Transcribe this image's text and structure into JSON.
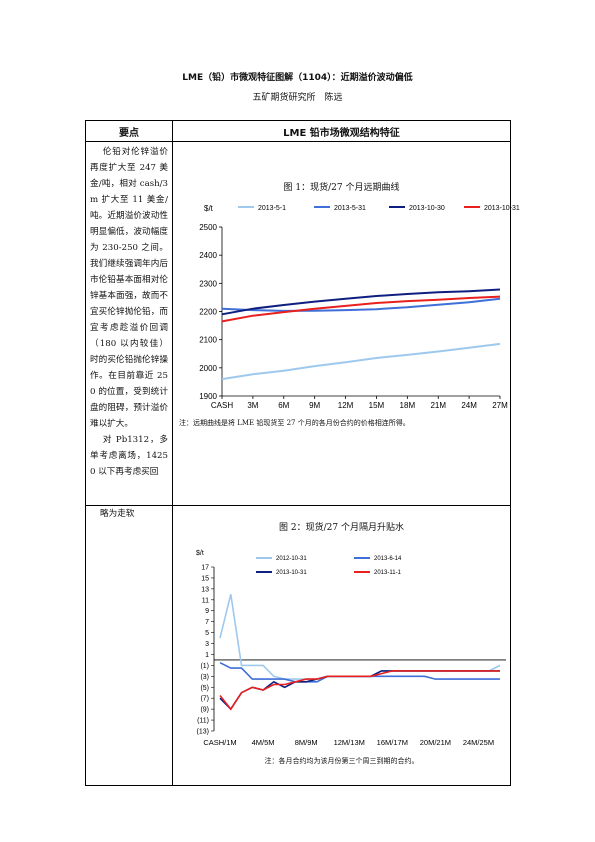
{
  "doc": {
    "title": "LME（铅）市微观特征图解（1104）：近期溢价波动偏低",
    "subtitle": "五矿期货研究所　陈远"
  },
  "table": {
    "col1_header": "要点",
    "col2_header": "LME 铅市场微观结构特征",
    "row1_paragraphs": [
      "伦铅对伦锌溢价再度扩大至 247 美金/吨，相对 cash/3m 扩大至 11 美金/吨。近期溢价波动性明显偏低，波动幅度为 230-250 之间。我们继续强调年内后市伦铅基本面相对伦锌基本面强，故而不宜买伦锌抛伦铅，而宜考虑趁溢价回调（180 以内较佳）时的买伦铅抛伦锌操作。在目前靠近 250 的位置，受到统计盘的阻碍，预计溢价难以扩大。",
      "对 Pb1312，多单考虑离场，14250 以下再考虑买回"
    ],
    "row2_text": "略为走软"
  },
  "chart1_title": "图 1：现货/27 个月远期曲线",
  "chart1_note": "注：远期曲线是将 LME 铅现货至 27 个月的各月份合约的价格相连所得。",
  "chart2_title": "图 2：现货/27 个月隔月升贴水",
  "chart2_note": "注：各月合约均为该月份第三个周三到期的合约。",
  "chart_data": [
    {
      "type": "line",
      "title": "图 1：现货/27 个月远期曲线",
      "ylabel": "$/t",
      "ylim": [
        1900,
        2500
      ],
      "yticks": [
        1900,
        2000,
        2100,
        2200,
        2300,
        2400,
        2500
      ],
      "x_tick_labels": [
        "CASH",
        "3M",
        "6M",
        "9M",
        "12M",
        "15M",
        "18M",
        "21M",
        "24M",
        "27M"
      ],
      "x_tick_months": [
        0,
        3,
        6,
        9,
        12,
        15,
        18,
        21,
        24,
        27
      ],
      "legend_placement": "top",
      "series": [
        {
          "name": "2013-5-1",
          "color": "#9ec9ee",
          "x": [
            0,
            3,
            6,
            9,
            12,
            15,
            18,
            21,
            24,
            27
          ],
          "values": [
            1960,
            1977,
            1990,
            2006,
            2020,
            2035,
            2046,
            2058,
            2071,
            2085
          ]
        },
        {
          "name": "2013-5-31",
          "color": "#3f6fd8",
          "x": [
            0,
            3,
            6,
            9,
            12,
            15,
            18,
            21,
            24,
            27
          ],
          "values": [
            2210,
            2205,
            2202,
            2203,
            2205,
            2208,
            2215,
            2224,
            2233,
            2245
          ]
        },
        {
          "name": "2013-10-30",
          "color": "#0f1f80",
          "x": [
            0,
            3,
            6,
            9,
            12,
            15,
            18,
            21,
            24,
            27
          ],
          "values": [
            2190,
            2210,
            2223,
            2235,
            2245,
            2255,
            2262,
            2268,
            2272,
            2278
          ]
        },
        {
          "name": "2013-10-31",
          "color": "#e8201e",
          "x": [
            0,
            3,
            6,
            9,
            12,
            15,
            18,
            21,
            24,
            27
          ],
          "values": [
            2165,
            2185,
            2198,
            2210,
            2220,
            2230,
            2237,
            2242,
            2248,
            2253
          ]
        }
      ]
    },
    {
      "type": "line",
      "title": "图 2：现货/27 个月隔月升贴水",
      "ylabel": "$/t",
      "ylim": [
        -13,
        17
      ],
      "yticks": [
        17,
        15,
        13,
        11,
        9,
        7,
        5,
        3,
        1,
        -1,
        -3,
        -5,
        -7,
        -9,
        -11,
        -13
      ],
      "ytick_labels": [
        "17",
        "15",
        "13",
        "11",
        "9",
        "7",
        "5",
        "3",
        "1",
        "(1)",
        "(3)",
        "(5)",
        "(7)",
        "(9)",
        "(11)",
        "(13)"
      ],
      "x_tick_labels": [
        "CASH/1M",
        "4M/5M",
        "8M/9M",
        "12M/13M",
        "16M/17M",
        "20M/21M",
        "24M/25M"
      ],
      "x_tick_index": [
        0,
        4,
        8,
        12,
        16,
        20,
        24
      ],
      "legend_placement": "top",
      "series": [
        {
          "name": "2012-10-31",
          "color": "#9ec9ee",
          "values": [
            4,
            12,
            -1,
            -1,
            -1,
            -3,
            -3.5,
            -3.5,
            -3.5,
            -3.5,
            -3,
            -3,
            -3,
            -3,
            -3,
            -2,
            -2,
            -2,
            -2,
            -2,
            -2,
            -2,
            -2,
            -2,
            -2,
            -2,
            -1
          ]
        },
        {
          "name": "2013-6-14",
          "color": "#3f6fd8",
          "values": [
            -0.5,
            -1.5,
            -1.5,
            -3.5,
            -3.5,
            -3.5,
            -3.5,
            -4,
            -4,
            -4,
            -3,
            -3,
            -3,
            -3,
            -3,
            -3,
            -3,
            -3,
            -3,
            -3,
            -3.5,
            -3.5,
            -3.5,
            -3.5,
            -3.5,
            -3.5,
            -3.5
          ]
        },
        {
          "name": "2013-10-31",
          "color": "#0f1f80",
          "values": [
            -7,
            -9,
            -6,
            -5,
            -5.5,
            -4,
            -5,
            -4,
            -4,
            -3.5,
            -3,
            -3,
            -3,
            -3,
            -3,
            -2,
            -2,
            -2,
            -2,
            -2,
            -2,
            -2,
            -2,
            -2,
            -2,
            -2,
            -2
          ]
        },
        {
          "name": "2013-11-1",
          "color": "#e8201e",
          "values": [
            -6.5,
            -9,
            -6,
            -5,
            -5.5,
            -4.5,
            -4.5,
            -4,
            -3.5,
            -3.5,
            -3,
            -3,
            -3,
            -3,
            -3,
            -2.5,
            -2,
            -2,
            -2,
            -2,
            -2,
            -2,
            -2,
            -2,
            -2,
            -2,
            -2
          ]
        }
      ]
    }
  ]
}
